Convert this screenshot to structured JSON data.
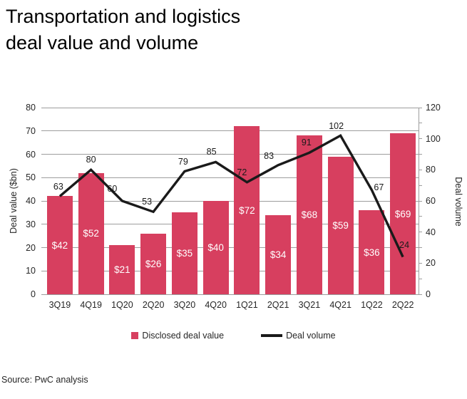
{
  "title": {
    "line1": "Transportation and logistics",
    "line2": "deal value and volume"
  },
  "source_note": "Source: PwC analysis",
  "legend": {
    "bar_label": "Disclosed deal value",
    "line_label": "Deal volume"
  },
  "colors": {
    "bar": "#d73f5f",
    "line": "#1a1a1a",
    "grid": "#9d9d9d",
    "bar_label_text": "#ffffff",
    "text": "#262626"
  },
  "chart_data": {
    "type": "bar+line",
    "title": "Transportation and logistics deal value and volume",
    "categories": [
      "3Q19",
      "4Q19",
      "1Q20",
      "2Q20",
      "3Q20",
      "4Q20",
      "1Q21",
      "2Q21",
      "3Q21",
      "4Q21",
      "1Q22",
      "2Q22"
    ],
    "series": [
      {
        "name": "Disclosed deal value",
        "type": "bar",
        "axis": "left",
        "values": [
          42,
          52,
          21,
          26,
          35,
          40,
          72,
          34,
          68,
          59,
          36,
          69
        ],
        "data_labels": [
          "$42",
          "$52",
          "$21",
          "$26",
          "$35",
          "$40",
          "$72",
          "$34",
          "$68",
          "$59",
          "$36",
          "$69"
        ]
      },
      {
        "name": "Deal volume",
        "type": "line",
        "axis": "right",
        "values": [
          63,
          80,
          60,
          53,
          79,
          85,
          72,
          83,
          91,
          102,
          67,
          24
        ]
      }
    ],
    "left_axis": {
      "title": "Deal value ($bn)",
      "min": 0,
      "max": 80,
      "step": 10,
      "tick_labels": [
        "0",
        "10",
        "20",
        "30",
        "40",
        "50",
        "60",
        "70",
        "80"
      ]
    },
    "right_axis": {
      "title": "Deal volume",
      "min": 0,
      "max": 120,
      "label_step": 20,
      "tick_step": 10,
      "tick_labels": [
        "0",
        "20",
        "40",
        "60",
        "80",
        "100",
        "120"
      ]
    },
    "grid": true,
    "legend_position": "bottom"
  }
}
